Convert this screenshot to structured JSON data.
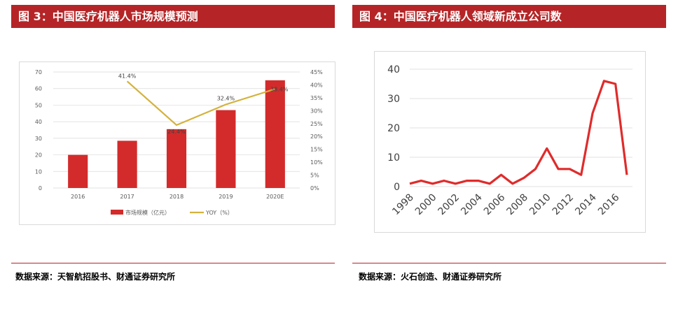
{
  "left_panel": {
    "title": "图 3：中国医疗机器人市场规模预测",
    "source": "数据来源：天智航招股书、财通证券研究所"
  },
  "right_panel": {
    "title": "图 4：中国医疗机器人领域新成立公司数",
    "source": "数据来源：火石创造、财通证券研究所"
  },
  "colors": {
    "title_bg": "#b52527",
    "bar": "#d32b2b",
    "yoy_line": "#d4b23c",
    "right_line": "#e02b2b",
    "source_rule": "#b52527"
  },
  "chart_data": [
    {
      "type": "bar",
      "categories": [
        "2016",
        "2017",
        "2018",
        "2019",
        "2020E"
      ],
      "series": [
        {
          "name": "市场规模（亿元）",
          "type": "bar",
          "axis": "left",
          "values": [
            20,
            28.5,
            35.5,
            47,
            65
          ]
        },
        {
          "name": "YOY（%）",
          "type": "line",
          "axis": "right",
          "values": [
            null,
            41.4,
            24.4,
            32.4,
            38.4
          ],
          "labels": [
            "",
            "41.4%",
            "24.4%",
            "32.4%",
            "38.4%"
          ]
        }
      ],
      "ylim": [
        0,
        70
      ],
      "yticks": [
        "0",
        "10",
        "20",
        "30",
        "40",
        "50",
        "60",
        "70"
      ],
      "y2lim": [
        0,
        45
      ],
      "y2ticks": [
        "0%",
        "5%",
        "10%",
        "15%",
        "20%",
        "25%",
        "30%",
        "35%",
        "40%",
        "45%"
      ],
      "legend": "bottom",
      "grid": true
    },
    {
      "type": "line",
      "x": [
        1998,
        1999,
        2000,
        2001,
        2002,
        2003,
        2004,
        2005,
        2006,
        2007,
        2008,
        2009,
        2010,
        2011,
        2012,
        2013,
        2014,
        2015,
        2016,
        2017
      ],
      "series": [
        {
          "values": [
            1,
            2,
            1,
            2,
            1,
            2,
            2,
            1,
            4,
            1,
            3,
            6,
            13,
            6,
            6,
            4,
            25,
            36,
            35,
            4
          ]
        }
      ],
      "xticks": [
        "1998",
        "2000",
        "2002",
        "2004",
        "2006",
        "2008",
        "2010",
        "2012",
        "2014",
        "2016"
      ],
      "ylim": [
        0,
        40
      ],
      "yticks": [
        "0",
        "10",
        "20",
        "30",
        "40"
      ],
      "grid": true
    }
  ]
}
